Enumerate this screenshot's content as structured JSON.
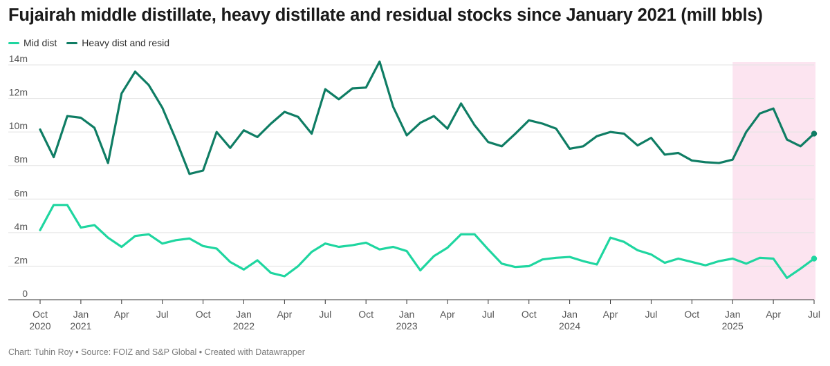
{
  "title": "Fujairah middle distillate, heavy distillate and residual stocks since January 2021 (mill bbls)",
  "footer": "Chart: Tuhin Roy • Source: FOIZ and S&P Global • Created with Datawrapper",
  "colors": {
    "mid": "#1fd6a0",
    "heavy": "#0f7d64",
    "highlight": "#fce4f0",
    "grid": "#e3e3e3",
    "axis": "#333333"
  },
  "chart_data": {
    "type": "line",
    "title": "Fujairah middle distillate, heavy distillate and residual stocks since January 2021 (mill bbls)",
    "xlabel": "",
    "ylabel": "",
    "ylim": [
      0,
      14
    ],
    "grid": true,
    "legend_position": "top-left",
    "y_ticks": [
      {
        "value": 0,
        "label": "0"
      },
      {
        "value": 2,
        "label": "2m"
      },
      {
        "value": 4,
        "label": "4m"
      },
      {
        "value": 6,
        "label": "6m"
      },
      {
        "value": 8,
        "label": "8m"
      },
      {
        "value": 10,
        "label": "10m"
      },
      {
        "value": 12,
        "label": "12m"
      },
      {
        "value": 14,
        "label": "14m"
      }
    ],
    "x_ticks": [
      {
        "date": "2020-10",
        "label": "Oct",
        "year": "2020"
      },
      {
        "date": "2021-01",
        "label": "Jan",
        "year": "2021"
      },
      {
        "date": "2021-04",
        "label": "Apr",
        "year": ""
      },
      {
        "date": "2021-07",
        "label": "Jul",
        "year": ""
      },
      {
        "date": "2021-10",
        "label": "Oct",
        "year": ""
      },
      {
        "date": "2022-01",
        "label": "Jan",
        "year": "2022"
      },
      {
        "date": "2022-04",
        "label": "Apr",
        "year": ""
      },
      {
        "date": "2022-07",
        "label": "Jul",
        "year": ""
      },
      {
        "date": "2022-10",
        "label": "Oct",
        "year": ""
      },
      {
        "date": "2023-01",
        "label": "Jan",
        "year": "2023"
      },
      {
        "date": "2023-04",
        "label": "Apr",
        "year": ""
      },
      {
        "date": "2023-07",
        "label": "Jul",
        "year": ""
      },
      {
        "date": "2023-10",
        "label": "Oct",
        "year": ""
      },
      {
        "date": "2024-01",
        "label": "Jan",
        "year": "2024"
      },
      {
        "date": "2024-04",
        "label": "Apr",
        "year": ""
      },
      {
        "date": "2024-07",
        "label": "Jul",
        "year": ""
      },
      {
        "date": "2024-10",
        "label": "Oct",
        "year": ""
      },
      {
        "date": "2025-01",
        "label": "Jan",
        "year": "2025"
      },
      {
        "date": "2025-04",
        "label": "Apr",
        "year": ""
      },
      {
        "date": "2025-07",
        "label": "Jul",
        "year": ""
      }
    ],
    "x_range": [
      "2020-10",
      "2025-07"
    ],
    "highlight_range": [
      "2025-01",
      "2025-07"
    ],
    "series": [
      {
        "name": "Mid dist",
        "color": "#1fd6a0",
        "points": [
          [
            "2020-10",
            4.15
          ],
          [
            "2020-11",
            5.65
          ],
          [
            "2020-12",
            5.65
          ],
          [
            "2021-01",
            4.3
          ],
          [
            "2021-02",
            4.45
          ],
          [
            "2021-03",
            3.7
          ],
          [
            "2021-04",
            3.15
          ],
          [
            "2021-05",
            3.8
          ],
          [
            "2021-06",
            3.9
          ],
          [
            "2021-07",
            3.35
          ],
          [
            "2021-08",
            3.55
          ],
          [
            "2021-09",
            3.65
          ],
          [
            "2021-10",
            3.2
          ],
          [
            "2021-11",
            3.05
          ],
          [
            "2021-12",
            2.25
          ],
          [
            "2022-01",
            1.8
          ],
          [
            "2022-02",
            2.35
          ],
          [
            "2022-03",
            1.6
          ],
          [
            "2022-04",
            1.4
          ],
          [
            "2022-05",
            2.0
          ],
          [
            "2022-06",
            2.85
          ],
          [
            "2022-07",
            3.35
          ],
          [
            "2022-08",
            3.15
          ],
          [
            "2022-09",
            3.25
          ],
          [
            "2022-10",
            3.4
          ],
          [
            "2022-11",
            3.0
          ],
          [
            "2022-12",
            3.15
          ],
          [
            "2023-01",
            2.9
          ],
          [
            "2023-02",
            1.75
          ],
          [
            "2023-03",
            2.6
          ],
          [
            "2023-04",
            3.1
          ],
          [
            "2023-05",
            3.9
          ],
          [
            "2023-06",
            3.9
          ],
          [
            "2023-07",
            3.0
          ],
          [
            "2023-08",
            2.15
          ],
          [
            "2023-09",
            1.95
          ],
          [
            "2023-10",
            2.0
          ],
          [
            "2023-11",
            2.4
          ],
          [
            "2023-12",
            2.5
          ],
          [
            "2024-01",
            2.55
          ],
          [
            "2024-02",
            2.3
          ],
          [
            "2024-03",
            2.1
          ],
          [
            "2024-04",
            3.7
          ],
          [
            "2024-05",
            3.45
          ],
          [
            "2024-06",
            2.95
          ],
          [
            "2024-07",
            2.7
          ],
          [
            "2024-08",
            2.2
          ],
          [
            "2024-09",
            2.45
          ],
          [
            "2024-10",
            2.25
          ],
          [
            "2024-11",
            2.05
          ],
          [
            "2024-12",
            2.3
          ],
          [
            "2025-01",
            2.45
          ],
          [
            "2025-02",
            2.15
          ],
          [
            "2025-03",
            2.5
          ],
          [
            "2025-04",
            2.45
          ],
          [
            "2025-05",
            1.3
          ],
          [
            "2025-06",
            1.85
          ],
          [
            "2025-07",
            2.45
          ]
        ]
      },
      {
        "name": "Heavy dist and resid",
        "color": "#0f7d64",
        "points": [
          [
            "2020-10",
            10.15
          ],
          [
            "2020-11",
            8.5
          ],
          [
            "2020-12",
            10.95
          ],
          [
            "2021-01",
            10.85
          ],
          [
            "2021-02",
            10.25
          ],
          [
            "2021-03",
            8.15
          ],
          [
            "2021-04",
            12.3
          ],
          [
            "2021-05",
            13.6
          ],
          [
            "2021-06",
            12.8
          ],
          [
            "2021-07",
            11.45
          ],
          [
            "2021-08",
            9.55
          ],
          [
            "2021-09",
            7.5
          ],
          [
            "2021-10",
            7.7
          ],
          [
            "2021-11",
            10.0
          ],
          [
            "2021-12",
            9.05
          ],
          [
            "2022-01",
            10.1
          ],
          [
            "2022-02",
            9.7
          ],
          [
            "2022-03",
            10.5
          ],
          [
            "2022-04",
            11.2
          ],
          [
            "2022-05",
            10.9
          ],
          [
            "2022-06",
            9.9
          ],
          [
            "2022-07",
            12.55
          ],
          [
            "2022-08",
            11.95
          ],
          [
            "2022-09",
            12.6
          ],
          [
            "2022-10",
            12.65
          ],
          [
            "2022-11",
            14.2
          ],
          [
            "2022-12",
            11.5
          ],
          [
            "2023-01",
            9.8
          ],
          [
            "2023-02",
            10.55
          ],
          [
            "2023-03",
            10.95
          ],
          [
            "2023-04",
            10.2
          ],
          [
            "2023-05",
            11.7
          ],
          [
            "2023-06",
            10.4
          ],
          [
            "2023-07",
            9.4
          ],
          [
            "2023-08",
            9.15
          ],
          [
            "2023-09",
            9.9
          ],
          [
            "2023-10",
            10.7
          ],
          [
            "2023-11",
            10.5
          ],
          [
            "2023-12",
            10.2
          ],
          [
            "2024-01",
            9.0
          ],
          [
            "2024-02",
            9.15
          ],
          [
            "2024-03",
            9.75
          ],
          [
            "2024-04",
            10.0
          ],
          [
            "2024-05",
            9.9
          ],
          [
            "2024-06",
            9.2
          ],
          [
            "2024-07",
            9.65
          ],
          [
            "2024-08",
            8.65
          ],
          [
            "2024-09",
            8.75
          ],
          [
            "2024-10",
            8.3
          ],
          [
            "2024-11",
            8.2
          ],
          [
            "2024-12",
            8.15
          ],
          [
            "2025-01",
            8.35
          ],
          [
            "2025-02",
            10.0
          ],
          [
            "2025-03",
            11.1
          ],
          [
            "2025-04",
            11.4
          ],
          [
            "2025-05",
            9.55
          ],
          [
            "2025-06",
            9.15
          ],
          [
            "2025-07",
            9.9
          ]
        ]
      }
    ]
  }
}
